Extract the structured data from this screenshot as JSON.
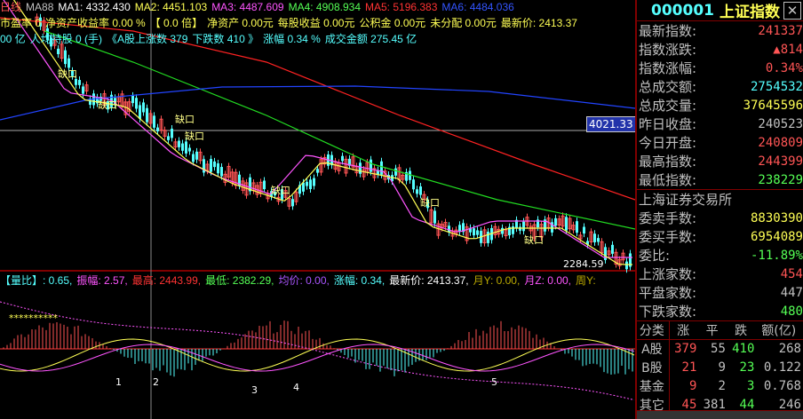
{
  "ma_line": {
    "period_label": "日线",
    "ma88": "MA88",
    "ma1": "MA1: 4332.430",
    "ma2": "MA2: 4451.103",
    "ma3": "MA3: 4487.609",
    "ma4": "MA4: 4908.934",
    "ma5": "MA5: 5196.383",
    "ma6": "MA6: 4484.036"
  },
  "fin_line": {
    "pe": "市盈率 0",
    "roe": "净资产收益率 0.00 %",
    "pb": "【 0.0 倍】",
    "na": "净资产 0.00元",
    "eps": "每股收益 0.00元",
    "cr": "公积金 0.00元",
    "ud": "未分配 0.00元",
    "last": "最新价: 2413.37"
  },
  "mkt_line": {
    "amt": "00 亿",
    "hold": "人均持股 0 (手)",
    "up": "《A股上涨数 379",
    "down": "下跌数 410 》",
    "chg": "涨幅 0.34 %",
    "turn": "成交金额 275.45 亿"
  },
  "price_tags": {
    "crosshair": "4021.33",
    "low": "2284.59"
  },
  "gap_label": "缺口",
  "ind_line": {
    "lb": "【量比】: 0.65,",
    "amp": "振幅: 2.57,",
    "hi": "最高: 2443.99,",
    "lo": "最低: 2382.29,",
    "avg": "均价: 0.00,",
    "chg": "涨幅: 0.34,",
    "last": "最新价: 2413.37,",
    "my": "月Y: 0.00,",
    "mz": "月Z: 0.00,",
    "wk": "周Y:"
  },
  "markers": [
    "1",
    "2",
    "3",
    "4",
    "5"
  ],
  "quote": {
    "code": "000001",
    "name": "上证指数",
    "rows": [
      {
        "k": "最新指数:",
        "v": "241337",
        "c": "r"
      },
      {
        "k": "指数涨跌:",
        "v": "▲814",
        "c": "r"
      },
      {
        "k": "指数涨幅:",
        "v": "0.34%",
        "c": "r"
      },
      {
        "k": "总成交额:",
        "v": "2754532",
        "c": "c2"
      },
      {
        "k": "总成交量:",
        "v": "37645596",
        "c": "y"
      },
      {
        "k": "昨日收盘:",
        "v": "240523",
        "c": "w"
      },
      {
        "k": "今日开盘:",
        "v": "240809",
        "c": "r"
      },
      {
        "k": "最高指数:",
        "v": "244399",
        "c": "r"
      },
      {
        "k": "最低指数:",
        "v": "238229",
        "c": "g"
      }
    ],
    "exchange": "上海证券交易所",
    "rows2": [
      {
        "k": "委卖手数:",
        "v": "8830390",
        "c": "y"
      },
      {
        "k": "委买手数:",
        "v": "6954089",
        "c": "y"
      },
      {
        "k": "委比:",
        "v": "-11.89%",
        "c": "g"
      },
      {
        "k": "上涨家数:",
        "v": "454",
        "c": "r"
      },
      {
        "k": "平盘家数:",
        "v": "447",
        "c": "w"
      },
      {
        "k": "下跌家数:",
        "v": "480",
        "c": "g"
      }
    ],
    "table_head": [
      "分类",
      "涨",
      "平",
      "跌",
      "额(亿)"
    ],
    "table": [
      [
        "A股",
        "379",
        "55",
        "410",
        "268"
      ],
      [
        "B股",
        "21",
        "9",
        "23",
        "0.122"
      ],
      [
        "基金",
        "9",
        "2",
        "3",
        "0.768"
      ],
      [
        "其它",
        "45",
        "381",
        "44",
        "246"
      ]
    ]
  },
  "colors": {
    "up": "#ff5555",
    "down": "#55ffff",
    "border": "#800000"
  }
}
